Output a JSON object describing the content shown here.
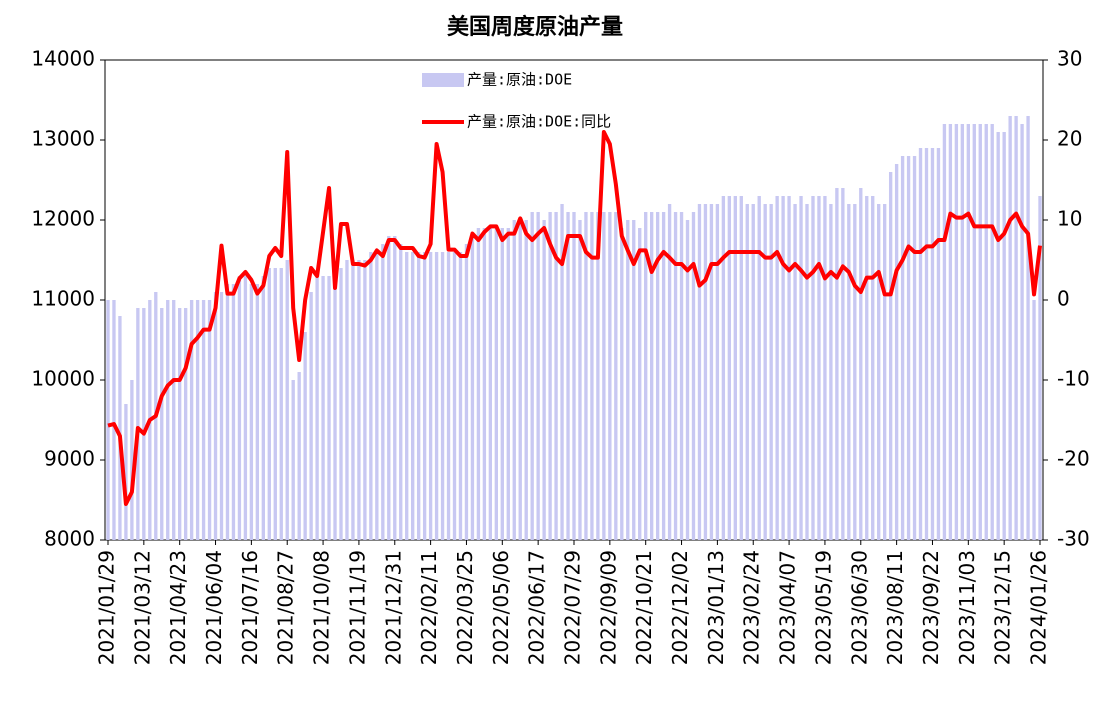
{
  "chart_data": {
    "type": "bar",
    "title": "美国周度原油产量",
    "categories": [
      "2021/01/29",
      null,
      null,
      null,
      null,
      null,
      "2021/03/12",
      null,
      null,
      null,
      null,
      null,
      "2021/04/23",
      null,
      null,
      null,
      null,
      null,
      "2021/06/04",
      null,
      null,
      null,
      null,
      null,
      "2021/07/16",
      null,
      null,
      null,
      null,
      null,
      "2021/08/27",
      null,
      null,
      null,
      null,
      null,
      "2021/10/08",
      null,
      null,
      null,
      null,
      null,
      "2021/11/19",
      null,
      null,
      null,
      null,
      null,
      "2021/12/31",
      null,
      null,
      null,
      null,
      null,
      "2022/02/11",
      null,
      null,
      null,
      null,
      null,
      "2022/03/25",
      null,
      null,
      null,
      null,
      null,
      "2022/05/06",
      null,
      null,
      null,
      null,
      null,
      "2022/06/17",
      null,
      null,
      null,
      null,
      null,
      "2022/07/29",
      null,
      null,
      null,
      null,
      null,
      "2022/09/09",
      null,
      null,
      null,
      null,
      null,
      "2022/10/21",
      null,
      null,
      null,
      null,
      null,
      "2022/12/02",
      null,
      null,
      null,
      null,
      null,
      "2023/01/13",
      null,
      null,
      null,
      null,
      null,
      "2023/02/24",
      null,
      null,
      null,
      null,
      null,
      "2023/04/07",
      null,
      null,
      null,
      null,
      null,
      "2023/05/19",
      null,
      null,
      null,
      null,
      null,
      "2023/06/30",
      null,
      null,
      null,
      null,
      null,
      "2023/08/11",
      null,
      null,
      null,
      null,
      null,
      "2023/09/22",
      null,
      null,
      null,
      null,
      null,
      "2023/11/03",
      null,
      null,
      null,
      null,
      null,
      "2023/12/15",
      null,
      null,
      null,
      null,
      null,
      "2024/01/26"
    ],
    "series": [
      {
        "name": "产量:原油:DOE",
        "type": "bar",
        "color": "#c8c8f2",
        "values": [
          11000,
          11000,
          10800,
          9700,
          10000,
          10900,
          10900,
          11000,
          11100,
          10900,
          11000,
          11000,
          10900,
          10900,
          11000,
          11000,
          11000,
          11000,
          11100,
          11100,
          11200,
          11200,
          11300,
          11300,
          11200,
          11200,
          11300,
          11400,
          11400,
          11400,
          11500,
          10000,
          10100,
          10600,
          11100,
          11300,
          11300,
          11300,
          11300,
          11400,
          11500,
          11500,
          11500,
          11500,
          11600,
          11600,
          11700,
          11800,
          11800,
          11700,
          11600,
          11600,
          11600,
          11600,
          11600,
          11600,
          11600,
          11600,
          11600,
          11600,
          11700,
          11800,
          11900,
          11900,
          11900,
          11900,
          11900,
          11900,
          12000,
          12000,
          12000,
          12100,
          12100,
          12000,
          12100,
          12100,
          12200,
          12100,
          12100,
          12000,
          12100,
          12100,
          12100,
          12100,
          12100,
          12100,
          11900,
          12000,
          12000,
          11900,
          12100,
          12100,
          12100,
          12100,
          12200,
          12100,
          12100,
          12000,
          12100,
          12200,
          12200,
          12200,
          12200,
          12300,
          12300,
          12300,
          12300,
          12200,
          12200,
          12300,
          12200,
          12200,
          12300,
          12300,
          12300,
          12200,
          12300,
          12200,
          12300,
          12300,
          12300,
          12200,
          12400,
          12400,
          12200,
          12200,
          12400,
          12300,
          12300,
          12200,
          12200,
          12600,
          12700,
          12800,
          12800,
          12800,
          12900,
          12900,
          12900,
          12900,
          13200,
          13200,
          13200,
          13200,
          13200,
          13200,
          13200,
          13200,
          13200,
          13100,
          13100,
          13300,
          13300,
          13200,
          13300,
          11000,
          12300
        ]
      },
      {
        "name": "产量:原油:DOE:同比",
        "type": "line",
        "axis": "y2",
        "color": "#ff0000",
        "values": [
          -15.7,
          -15.5,
          -17,
          -25.5,
          -24,
          -16,
          -16.7,
          -15,
          -14.5,
          -12,
          -10.7,
          -10,
          -10,
          -8.5,
          -5.5,
          -4.7,
          -3.7,
          -3.7,
          -1,
          6.8,
          0.8,
          0.8,
          2.7,
          3.5,
          2.5,
          0.8,
          1.8,
          5.5,
          6.5,
          5.5,
          18.5,
          -1,
          -7.5,
          0,
          4,
          3,
          8.5,
          14,
          1.5,
          9.5,
          9.5,
          4.5,
          4.5,
          4.3,
          5,
          6.2,
          5.5,
          7.5,
          7.5,
          6.5,
          6.5,
          6.5,
          5.5,
          5.3,
          7,
          19.5,
          16,
          6.3,
          6.3,
          5.5,
          5.5,
          8.3,
          7.5,
          8.5,
          9.2,
          9.2,
          7.5,
          8.3,
          8.3,
          10.2,
          8.3,
          7.5,
          8.3,
          9,
          7,
          5.3,
          4.5,
          8,
          8,
          8,
          6,
          5.3,
          5.3,
          21,
          19.5,
          14.5,
          8,
          6.2,
          4.5,
          6.2,
          6.2,
          3.5,
          5,
          6,
          5.3,
          4.5,
          4.5,
          3.7,
          4.5,
          1.8,
          2.5,
          4.5,
          4.5,
          5.3,
          6,
          6,
          6,
          6,
          6,
          6,
          5.3,
          5.3,
          6,
          4.5,
          3.7,
          4.5,
          3.7,
          2.8,
          3.5,
          4.5,
          2.7,
          3.5,
          2.8,
          4.2,
          3.5,
          1.8,
          1,
          2.8,
          2.8,
          3.5,
          0.7,
          0.7,
          3.7,
          5,
          6.7,
          6,
          6,
          6.7,
          6.7,
          7.5,
          7.5,
          10.8,
          10.3,
          10.3,
          10.8,
          9.2,
          9.2,
          9.2,
          9.2,
          7.5,
          8.3,
          10,
          10.8,
          9.2,
          8.3,
          0.7,
          6.8
        ]
      }
    ],
    "ylim": [
      8000,
      14000
    ],
    "yticks": [
      8000,
      9000,
      10000,
      11000,
      12000,
      13000,
      14000
    ],
    "y2lim": [
      -30,
      30
    ],
    "y2ticks": [
      -30,
      -20,
      -10,
      0,
      10,
      20,
      30
    ],
    "grid": false
  }
}
